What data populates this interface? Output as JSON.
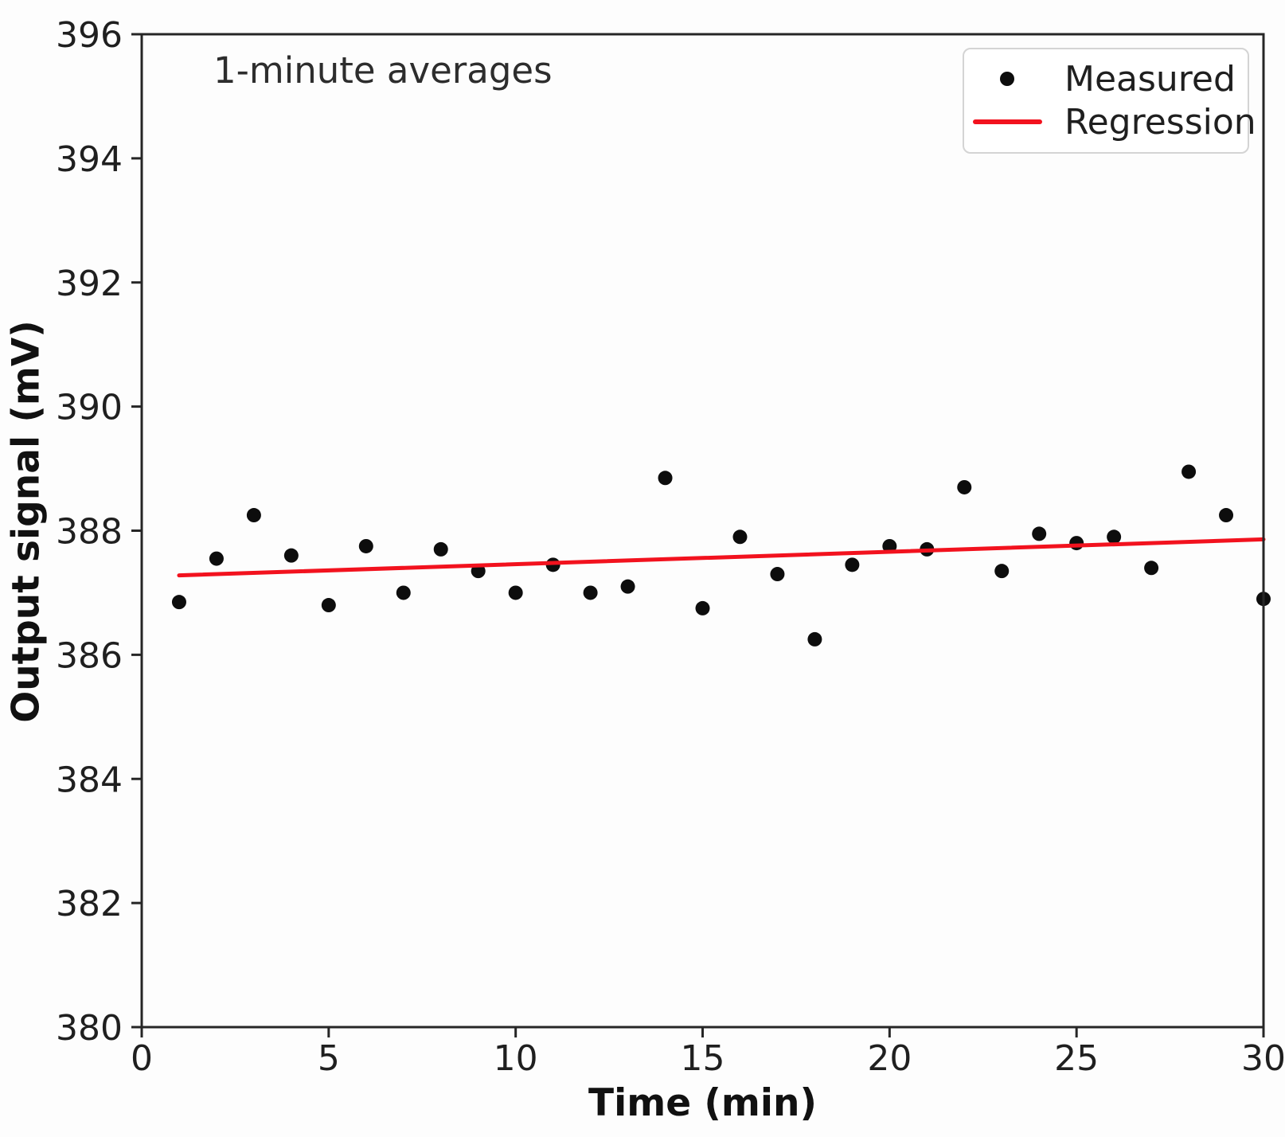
{
  "chart_data": {
    "type": "scatter",
    "annotation": "1-minute averages",
    "xlabel": "Time (min)",
    "ylabel": "Output signal (mV)",
    "xlim": [
      0,
      30
    ],
    "ylim": [
      380,
      396
    ],
    "x_ticks": [
      0,
      5,
      10,
      15,
      20,
      25,
      30
    ],
    "y_ticks": [
      380,
      382,
      384,
      386,
      388,
      390,
      392,
      394,
      396
    ],
    "grid": false,
    "axis_color": "#262626",
    "text_color": "#1f1f1f",
    "legend": {
      "position": "upper-right",
      "entries": [
        {
          "label": "Measured",
          "marker": "dot",
          "color": "#0d0d0d"
        },
        {
          "label": "Regression",
          "marker": "line",
          "color": "#f2121e"
        }
      ]
    },
    "series": [
      {
        "name": "Measured",
        "type": "scatter",
        "color": "#0d0d0d",
        "x": [
          1,
          2,
          3,
          4,
          5,
          6,
          7,
          8,
          9,
          10,
          11,
          12,
          13,
          14,
          15,
          16,
          17,
          18,
          19,
          20,
          21,
          22,
          23,
          24,
          25,
          26,
          27,
          28,
          29,
          30
        ],
        "y": [
          386.85,
          387.55,
          388.25,
          387.6,
          386.8,
          387.75,
          387.0,
          387.7,
          387.35,
          387.0,
          387.45,
          387.0,
          387.1,
          388.85,
          386.75,
          387.9,
          387.3,
          386.25,
          387.45,
          387.75,
          387.7,
          388.7,
          387.35,
          387.95,
          387.8,
          387.9,
          387.4,
          388.95,
          388.25,
          386.9
        ]
      },
      {
        "name": "Regression",
        "type": "line",
        "color": "#f2121e",
        "x": [
          1,
          30
        ],
        "y": [
          387.28,
          387.86
        ]
      }
    ]
  }
}
